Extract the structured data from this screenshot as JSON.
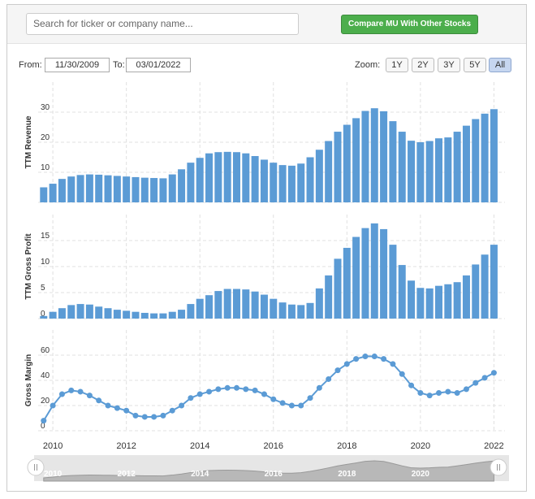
{
  "ui": {
    "search_placeholder": "Search for ticker or company name...",
    "compare_button": "Compare MU With Other Stocks",
    "from_label": "From:",
    "from_date": "11/30/2009",
    "to_label": "To:",
    "to_date": "03/01/2022",
    "zoom_label": "Zoom:",
    "zoom_buttons": [
      "1Y",
      "2Y",
      "3Y",
      "5Y",
      "All"
    ],
    "zoom_active": "All"
  },
  "chart_data": [
    {
      "type": "bar",
      "y_label": "TTM Revenue",
      "color": "#5b9bd5",
      "x": [
        2009.75,
        2010,
        2010.25,
        2010.5,
        2010.75,
        2011,
        2011.25,
        2011.5,
        2011.75,
        2012,
        2012.25,
        2012.5,
        2012.75,
        2013,
        2013.25,
        2013.5,
        2013.75,
        2014,
        2014.25,
        2014.5,
        2014.75,
        2015,
        2015.25,
        2015.5,
        2015.75,
        2016,
        2016.25,
        2016.5,
        2016.75,
        2017,
        2017.25,
        2017.5,
        2017.75,
        2018,
        2018.25,
        2018.5,
        2018.75,
        2019,
        2019.25,
        2019.5,
        2019.75,
        2020,
        2020.25,
        2020.5,
        2020.75,
        2021,
        2021.25,
        2021.5,
        2021.75,
        2022
      ],
      "values": [
        5.0,
        6.2,
        7.8,
        8.6,
        9.1,
        9.3,
        9.2,
        9.0,
        8.8,
        8.6,
        8.4,
        8.2,
        8.1,
        8.0,
        9.3,
        11.0,
        13.2,
        14.8,
        16.3,
        16.7,
        16.8,
        16.7,
        16.3,
        15.4,
        14.2,
        13.2,
        12.4,
        12.2,
        12.9,
        15.0,
        17.5,
        20.4,
        23.5,
        25.8,
        28.0,
        30.4,
        31.3,
        30.3,
        27.0,
        23.5,
        20.5,
        20.0,
        20.4,
        21.3,
        21.6,
        23.5,
        25.5,
        27.7,
        29.5,
        31.0
      ],
      "xlim": [
        2009.6,
        2022.3
      ],
      "xticks": [
        2010,
        2012,
        2014,
        2016,
        2018,
        2020,
        2022
      ],
      "ylim": [
        0,
        40
      ],
      "yticks": [
        0,
        10,
        20,
        30
      ],
      "grid": true
    },
    {
      "type": "bar",
      "y_label": "TTM Gross Profit",
      "color": "#5b9bd5",
      "x": [
        2009.75,
        2010,
        2010.25,
        2010.5,
        2010.75,
        2011,
        2011.25,
        2011.5,
        2011.75,
        2012,
        2012.25,
        2012.5,
        2012.75,
        2013,
        2013.25,
        2013.5,
        2013.75,
        2014,
        2014.25,
        2014.5,
        2014.75,
        2015,
        2015.25,
        2015.5,
        2015.75,
        2016,
        2016.25,
        2016.5,
        2016.75,
        2017,
        2017.25,
        2017.5,
        2017.75,
        2018,
        2018.25,
        2018.5,
        2018.75,
        2019,
        2019.25,
        2019.5,
        2019.75,
        2020,
        2020.25,
        2020.5,
        2020.75,
        2021,
        2021.25,
        2021.5,
        2021.75,
        2022
      ],
      "values": [
        0.5,
        1.3,
        2.0,
        2.6,
        2.8,
        2.7,
        2.3,
        2.0,
        1.7,
        1.5,
        1.3,
        1.1,
        1.0,
        1.0,
        1.3,
        1.7,
        2.8,
        3.8,
        4.5,
        5.3,
        5.7,
        5.7,
        5.6,
        5.2,
        4.6,
        3.8,
        3.1,
        2.7,
        2.6,
        3.0,
        5.8,
        8.3,
        11.5,
        13.6,
        15.7,
        17.4,
        18.3,
        17.2,
        14.2,
        10.3,
        7.3,
        5.9,
        5.8,
        6.3,
        6.6,
        7.0,
        8.3,
        10.4,
        12.3,
        14.2
      ],
      "xlim": [
        2009.6,
        2022.3
      ],
      "xticks": [
        2010,
        2012,
        2014,
        2016,
        2018,
        2020,
        2022
      ],
      "ylim": [
        0,
        20
      ],
      "yticks": [
        0,
        5,
        10,
        15
      ],
      "grid": true
    },
    {
      "type": "line",
      "y_label": "Gross Margin",
      "color": "#5b9bd5",
      "x": [
        2009.75,
        2010,
        2010.25,
        2010.5,
        2010.75,
        2011,
        2011.25,
        2011.5,
        2011.75,
        2012,
        2012.25,
        2012.5,
        2012.75,
        2013,
        2013.25,
        2013.5,
        2013.75,
        2014,
        2014.25,
        2014.5,
        2014.75,
        2015,
        2015.25,
        2015.5,
        2015.75,
        2016,
        2016.25,
        2016.5,
        2016.75,
        2017,
        2017.25,
        2017.5,
        2017.75,
        2018,
        2018.25,
        2018.5,
        2018.75,
        2019,
        2019.25,
        2019.5,
        2019.75,
        2020,
        2020.25,
        2020.5,
        2020.75,
        2021,
        2021.25,
        2021.5,
        2021.75,
        2022
      ],
      "values": [
        8,
        20,
        29,
        32,
        31,
        28,
        24,
        20,
        18,
        16,
        12,
        11,
        11,
        12,
        16,
        20,
        26,
        29,
        31,
        33,
        34,
        34,
        33,
        32,
        29,
        25,
        22,
        20,
        20,
        26,
        34,
        41,
        48,
        53,
        57,
        59,
        59,
        57,
        53,
        45,
        36,
        30,
        28,
        30,
        31,
        30,
        33,
        38,
        42,
        46
      ],
      "xlim": [
        2009.6,
        2022.3
      ],
      "xticks": [
        2010,
        2012,
        2014,
        2016,
        2018,
        2020,
        2022
      ],
      "ylim": [
        0,
        80
      ],
      "yticks": [
        0,
        20,
        40,
        60
      ],
      "grid": true
    }
  ],
  "navigator": {
    "xticks": [
      2010,
      2012,
      2014,
      2016,
      2018,
      2020
    ]
  }
}
